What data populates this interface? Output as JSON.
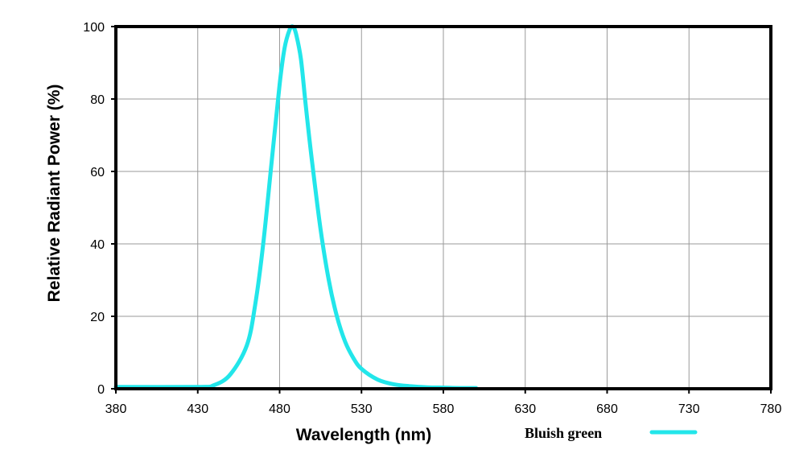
{
  "chart_data": {
    "type": "line",
    "title": "",
    "xlabel": "Wavelength (nm)",
    "ylabel": "Relative Radiant Power (%)",
    "xlim": [
      380,
      780
    ],
    "ylim": [
      0,
      100
    ],
    "x_ticks": [
      380,
      430,
      480,
      530,
      580,
      630,
      680,
      730,
      780
    ],
    "y_ticks": [
      0,
      20,
      40,
      60,
      80,
      100
    ],
    "grid": true,
    "legend": "bottom-right",
    "series": [
      {
        "name": "Bluish green",
        "color": "#22e6ea",
        "x": [
          380,
          430,
          440,
          450,
          460,
          465,
          470,
          475,
          480,
          483,
          486,
          488,
          490,
          493,
          496,
          500,
          505,
          510,
          515,
          520,
          525,
          530,
          540,
          550,
          560,
          570,
          580,
          590,
          600
        ],
        "y": [
          0.5,
          0.5,
          1,
          4,
          12,
          23,
          40,
          62,
          84,
          94,
          99,
          100,
          98,
          91,
          78,
          62,
          44,
          30,
          20,
          13,
          8.5,
          5.5,
          2.5,
          1.2,
          0.7,
          0.4,
          0.3,
          0.2,
          0.2
        ]
      }
    ]
  }
}
